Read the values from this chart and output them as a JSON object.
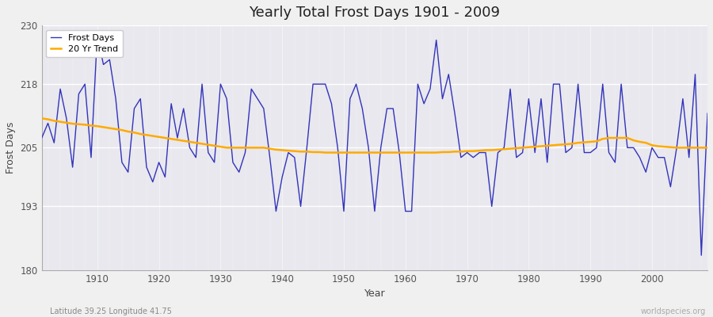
{
  "title": "Yearly Total Frost Days 1901 - 2009",
  "xlabel": "Year",
  "ylabel": "Frost Days",
  "ylim": [
    180,
    230
  ],
  "xlim": [
    1901,
    2009
  ],
  "yticks": [
    180,
    193,
    205,
    218,
    230
  ],
  "xticks": [
    1910,
    1920,
    1930,
    1940,
    1950,
    1960,
    1970,
    1980,
    1990,
    2000
  ],
  "fig_bg_color": "#f0f0f0",
  "plot_bg_color": "#e8e8ee",
  "line_color": "#3333bb",
  "trend_color": "#ffaa00",
  "footer_left": "Latitude 39.25 Longitude 41.75",
  "footer_right": "worldspecies.org",
  "legend_labels": [
    "Frost Days",
    "20 Yr Trend"
  ],
  "years": [
    1901,
    1902,
    1903,
    1904,
    1905,
    1906,
    1907,
    1908,
    1909,
    1910,
    1911,
    1912,
    1913,
    1914,
    1915,
    1916,
    1917,
    1918,
    1919,
    1920,
    1921,
    1922,
    1923,
    1924,
    1925,
    1926,
    1927,
    1928,
    1929,
    1930,
    1931,
    1932,
    1933,
    1934,
    1935,
    1936,
    1937,
    1938,
    1939,
    1940,
    1941,
    1942,
    1943,
    1944,
    1945,
    1946,
    1947,
    1948,
    1949,
    1950,
    1951,
    1952,
    1953,
    1954,
    1955,
    1956,
    1957,
    1958,
    1959,
    1960,
    1961,
    1962,
    1963,
    1964,
    1965,
    1966,
    1967,
    1968,
    1969,
    1970,
    1971,
    1972,
    1973,
    1974,
    1975,
    1976,
    1977,
    1978,
    1979,
    1980,
    1981,
    1982,
    1983,
    1984,
    1985,
    1986,
    1987,
    1988,
    1989,
    1990,
    1991,
    1992,
    1993,
    1994,
    1995,
    1996,
    1997,
    1998,
    1999,
    2000,
    2001,
    2002,
    2003,
    2004,
    2005,
    2006,
    2007,
    2008,
    2009
  ],
  "frost_days": [
    207,
    210,
    206,
    217,
    211,
    201,
    216,
    218,
    203,
    228,
    222,
    223,
    215,
    202,
    200,
    213,
    215,
    201,
    198,
    202,
    199,
    214,
    207,
    213,
    205,
    203,
    218,
    204,
    202,
    218,
    215,
    202,
    200,
    204,
    217,
    215,
    213,
    203,
    192,
    199,
    204,
    203,
    193,
    205,
    218,
    218,
    218,
    214,
    205,
    192,
    215,
    218,
    213,
    205,
    192,
    205,
    213,
    213,
    204,
    192,
    192,
    218,
    214,
    217,
    227,
    215,
    220,
    212,
    203,
    204,
    203,
    204,
    204,
    193,
    204,
    205,
    217,
    203,
    204,
    215,
    204,
    215,
    202,
    218,
    218,
    204,
    205,
    218,
    204,
    204,
    205,
    218,
    204,
    202,
    218,
    205,
    205,
    203,
    200,
    205,
    203,
    203,
    197,
    205,
    215,
    203,
    220,
    183,
    212
  ],
  "trend": [
    211.0,
    210.8,
    210.5,
    210.3,
    210.1,
    209.9,
    209.8,
    209.7,
    209.5,
    209.4,
    209.2,
    209.0,
    208.8,
    208.6,
    208.3,
    208.1,
    207.8,
    207.6,
    207.4,
    207.2,
    207.0,
    206.8,
    206.6,
    206.4,
    206.2,
    206.0,
    205.8,
    205.6,
    205.4,
    205.2,
    205.0,
    205.0,
    205.0,
    205.0,
    205.0,
    205.0,
    205.0,
    204.8,
    204.6,
    204.5,
    204.4,
    204.3,
    204.2,
    204.2,
    204.1,
    204.1,
    204.0,
    204.0,
    204.0,
    204.0,
    204.0,
    204.0,
    204.0,
    204.0,
    204.0,
    204.0,
    204.0,
    204.0,
    204.0,
    204.0,
    204.0,
    204.0,
    204.0,
    204.0,
    204.0,
    204.1,
    204.1,
    204.2,
    204.2,
    204.3,
    204.3,
    204.4,
    204.5,
    204.5,
    204.6,
    204.7,
    204.8,
    204.9,
    205.0,
    205.1,
    205.2,
    205.3,
    205.4,
    205.5,
    205.6,
    205.7,
    205.8,
    206.0,
    206.1,
    206.2,
    206.3,
    206.8,
    207.0,
    207.0,
    207.0,
    207.0,
    206.5,
    206.2,
    206.0,
    205.5,
    205.3,
    205.2,
    205.1,
    205.0,
    205.0,
    205.0,
    205.0,
    205.0,
    205.0
  ]
}
